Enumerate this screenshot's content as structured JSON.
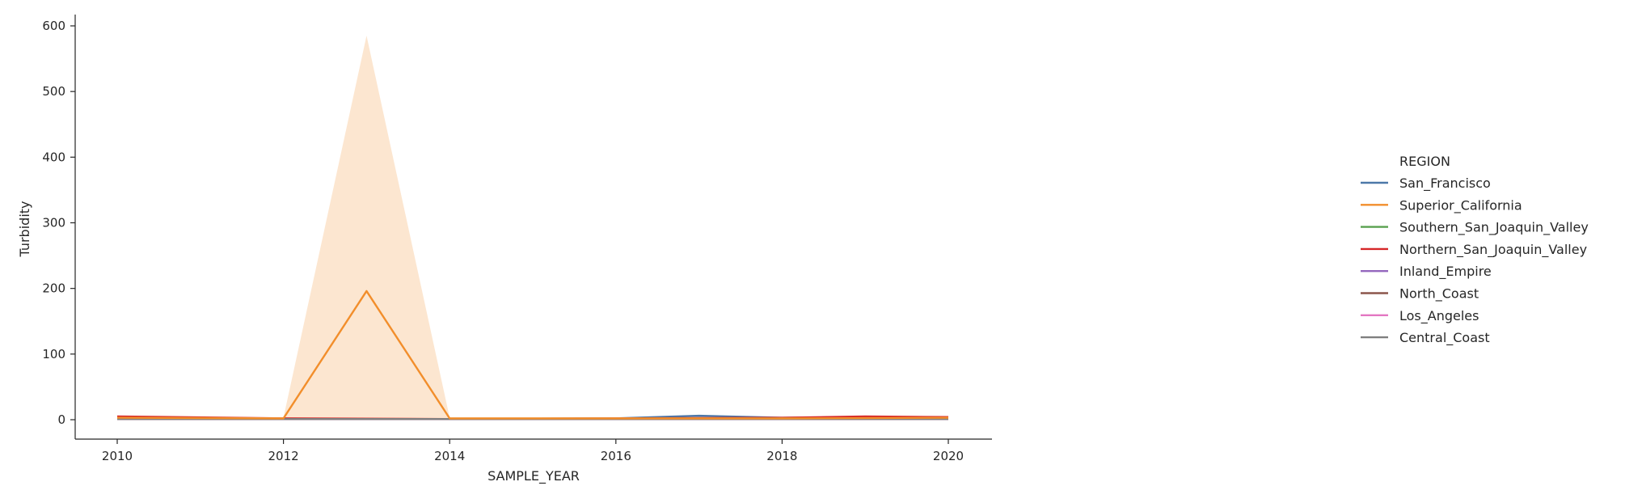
{
  "chart_data": {
    "type": "line",
    "xlabel": "SAMPLE_YEAR",
    "ylabel": "Turbidity",
    "xlim": [
      2009.5,
      2020.5
    ],
    "ylim": [
      -29,
      615
    ],
    "x_ticks": [
      2010,
      2012,
      2014,
      2016,
      2018,
      2020
    ],
    "y_ticks": [
      0,
      100,
      200,
      300,
      400,
      500,
      600
    ],
    "grid": false,
    "legend": {
      "title": "REGION",
      "placement": "right"
    },
    "series": [
      {
        "name": "San_Francisco",
        "color": "#4c78a8",
        "x": [
          2010,
          2012,
          2014,
          2016,
          2017,
          2018,
          2019,
          2020
        ],
        "y": [
          2,
          1,
          1,
          2,
          6,
          3,
          4,
          3
        ]
      },
      {
        "name": "Superior_California",
        "color": "#f28e2b",
        "x": [
          2010,
          2012,
          2013,
          2014,
          2016,
          2018,
          2020
        ],
        "y": [
          3,
          2,
          196,
          2,
          2,
          2,
          3
        ],
        "band_lower": [
          1,
          1,
          2,
          1,
          1,
          1,
          1
        ],
        "band_upper": [
          5,
          3,
          585,
          3,
          3,
          3,
          4
        ]
      },
      {
        "name": "Southern_San_Joaquin_Valley",
        "color": "#59a14f",
        "x": [
          2010,
          2012,
          2014,
          2016,
          2018,
          2020
        ],
        "y": [
          1,
          1,
          1,
          1,
          2,
          2
        ]
      },
      {
        "name": "Northern_San_Joaquin_Valley",
        "color": "#d62728",
        "x": [
          2010,
          2012,
          2014,
          2016,
          2018,
          2019,
          2020
        ],
        "y": [
          5,
          2,
          1,
          2,
          3,
          5,
          4
        ]
      },
      {
        "name": "Inland_Empire",
        "color": "#9467bd",
        "x": [
          2010,
          2012,
          2014,
          2016,
          2018,
          2020
        ],
        "y": [
          1,
          1,
          1,
          1,
          1,
          1
        ]
      },
      {
        "name": "North_Coast",
        "color": "#8c564b",
        "x": [
          2010,
          2012,
          2014,
          2016,
          2018,
          2020
        ],
        "y": [
          2,
          1,
          1,
          1,
          2,
          2
        ]
      },
      {
        "name": "Los_Angeles",
        "color": "#e377c2",
        "x": [
          2010,
          2012,
          2014,
          2016,
          2018,
          2020
        ],
        "y": [
          1,
          1,
          1,
          1,
          1,
          1
        ]
      },
      {
        "name": "Central_Coast",
        "color": "#7f7f7f",
        "x": [
          2010,
          2012,
          2014,
          2016,
          2018,
          2020
        ],
        "y": [
          1,
          1,
          1,
          1,
          1,
          1
        ]
      }
    ]
  }
}
